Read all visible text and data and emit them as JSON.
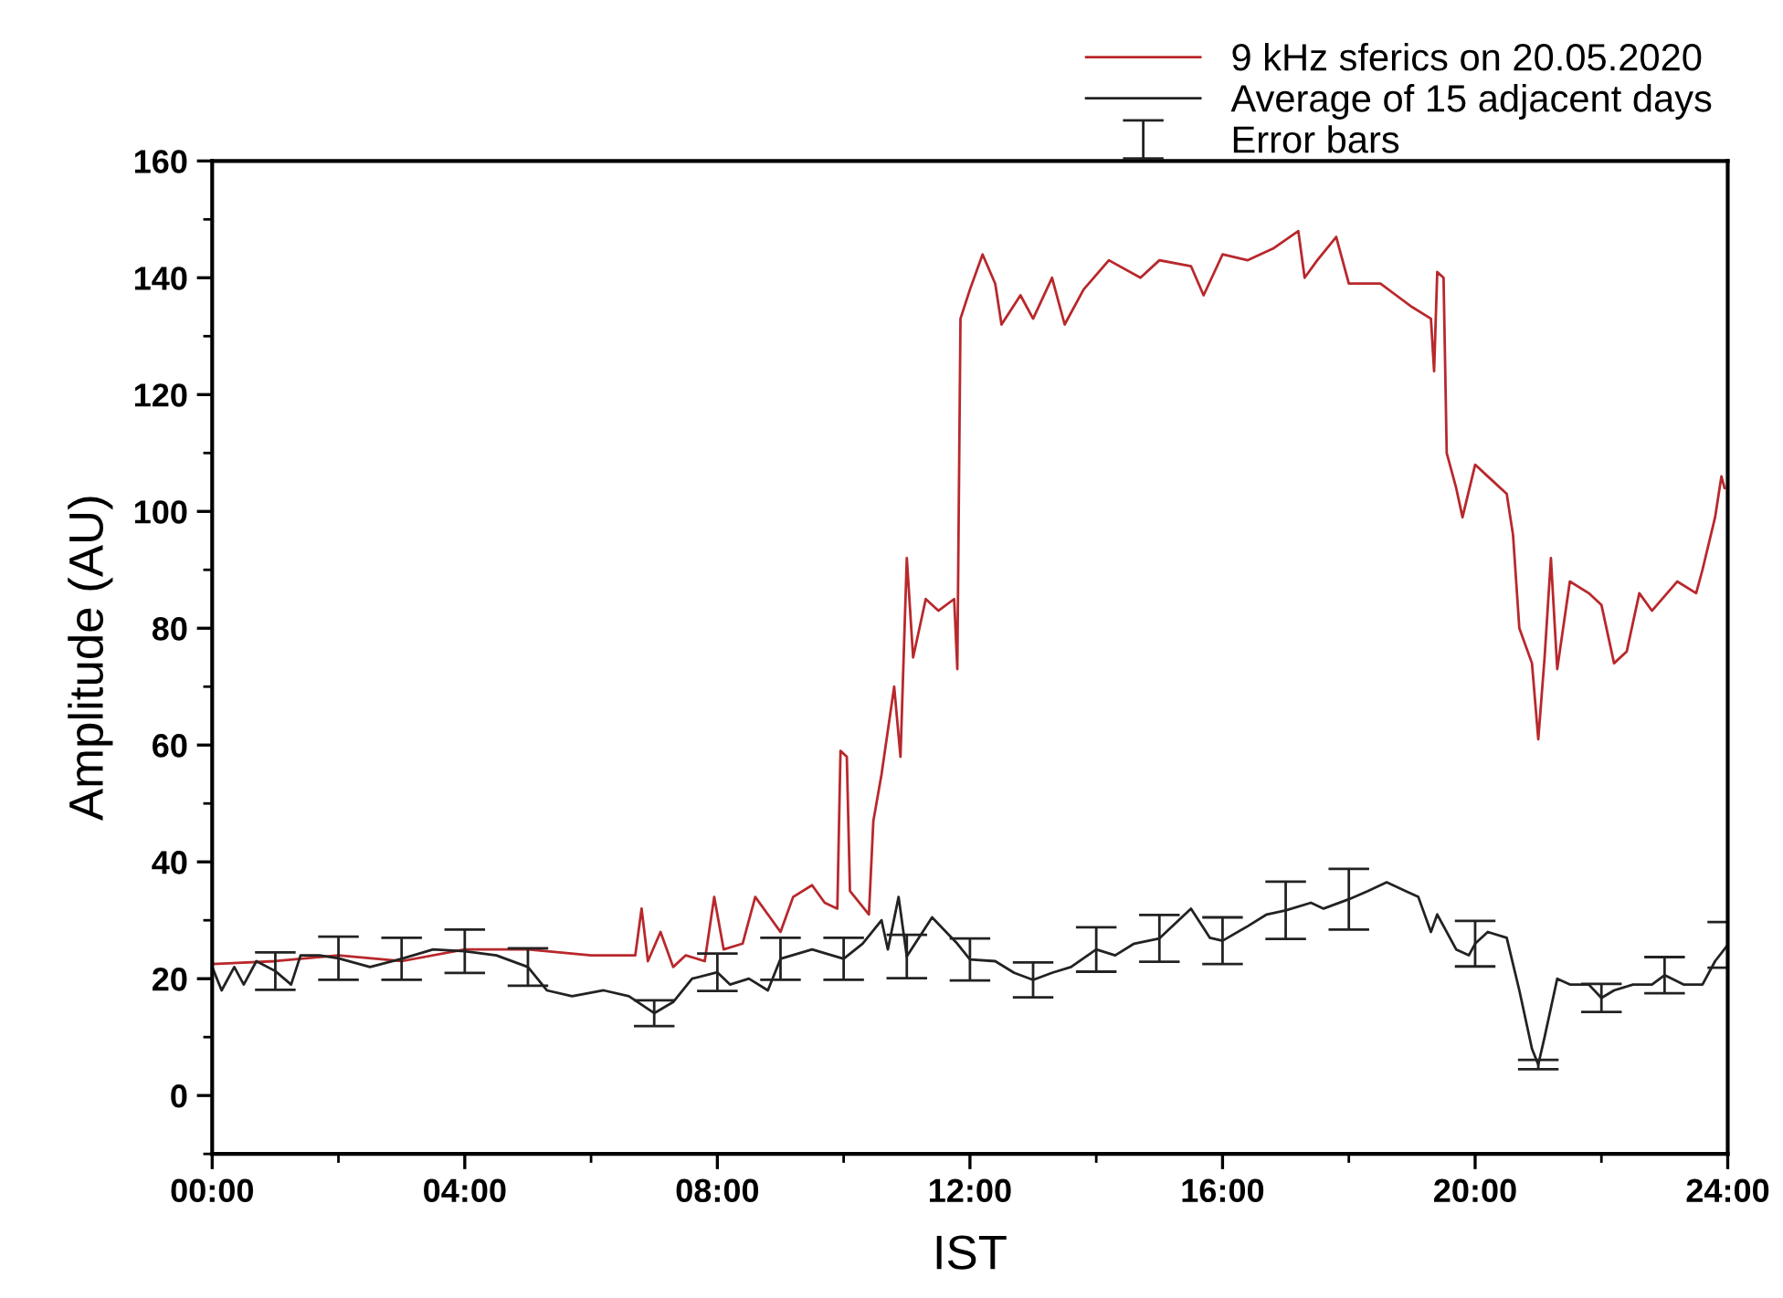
{
  "chart_data": {
    "type": "line",
    "xlabel": "IST",
    "ylabel": "Amplitude (AU)",
    "legend": "top right",
    "grid": false,
    "line_style": "solid",
    "marker": "none",
    "xlim": [
      0,
      24
    ],
    "xticks": [
      {
        "value": 0,
        "label": "00:00"
      },
      {
        "value": 2,
        "label": null
      },
      {
        "value": 4,
        "label": "04:00"
      },
      {
        "value": 6,
        "label": null
      },
      {
        "value": 8,
        "label": "08:00"
      },
      {
        "value": 10,
        "label": null
      },
      {
        "value": 12,
        "label": "12:00"
      },
      {
        "value": 14,
        "label": null
      },
      {
        "value": 16,
        "label": "16:00"
      },
      {
        "value": 18,
        "label": null
      },
      {
        "value": 20,
        "label": "20:00"
      },
      {
        "value": 22,
        "label": null
      },
      {
        "value": 24,
        "label": "24:00"
      }
    ],
    "ylim": [
      -10,
      160
    ],
    "yticks": [
      {
        "value": -10,
        "label": null
      },
      0,
      {
        "value": 10,
        "label": null
      },
      20,
      {
        "value": 30,
        "label": null
      },
      40,
      {
        "value": 50,
        "label": null
      },
      60,
      {
        "value": 70,
        "label": null
      },
      80,
      {
        "value": 90,
        "label": null
      },
      100,
      {
        "value": 110,
        "label": null
      },
      120,
      {
        "value": 130,
        "label": null
      },
      140,
      {
        "value": 150,
        "label": null
      },
      160
    ],
    "annotations": [
      "Error bars"
    ],
    "series": [
      {
        "name": "9 kHz sferics on 20.05.2020",
        "color": "#b8282c",
        "x": [
          0,
          1,
          2,
          3,
          4,
          5,
          6,
          6.7,
          6.8,
          6.9,
          7.1,
          7.3,
          7.5,
          7.8,
          7.95,
          8.1,
          8.4,
          8.6,
          8.8,
          9.0,
          9.2,
          9.5,
          9.7,
          9.9,
          9.95,
          10.05,
          10.1,
          10.4,
          10.47,
          10.6,
          10.8,
          10.9,
          11.0,
          11.1,
          11.3,
          11.5,
          11.75,
          11.8,
          11.85,
          12.0,
          12.2,
          12.4,
          12.5,
          12.8,
          13.0,
          13.3,
          13.5,
          13.8,
          14.2,
          14.7,
          15.0,
          15.5,
          15.7,
          16.0,
          16.4,
          16.8,
          17.2,
          17.3,
          17.5,
          17.8,
          18.0,
          18.5,
          19.0,
          19.3,
          19.35,
          19.4,
          19.5,
          19.55,
          19.7,
          19.8,
          20.0,
          20.2,
          20.5,
          20.6,
          20.7,
          20.9,
          21.0,
          21.1,
          21.2,
          21.3,
          21.5,
          21.8,
          22.0,
          22.2,
          22.4,
          22.6,
          22.8,
          23.2,
          23.5,
          23.6,
          23.8,
          23.9,
          23.95
        ],
        "values": [
          22.5,
          23,
          24,
          23,
          25,
          25,
          24,
          24,
          32,
          23,
          28,
          22,
          24,
          23,
          34,
          25,
          26,
          34,
          31,
          28,
          34,
          36,
          33,
          32,
          59,
          58,
          35,
          31,
          47,
          55,
          70,
          58,
          92,
          75,
          85,
          83,
          85,
          73,
          133,
          138,
          144,
          139,
          132,
          137,
          133,
          140,
          132,
          138,
          143,
          140,
          143,
          142,
          137,
          144,
          143,
          145,
          148,
          140,
          143,
          147,
          139,
          139,
          135,
          133,
          124,
          141,
          140,
          110,
          104,
          99,
          108,
          106,
          103,
          96,
          80,
          74,
          61,
          75,
          92,
          73,
          88,
          86,
          84,
          74,
          76,
          86,
          83,
          88,
          86,
          90,
          99,
          106,
          104
        ]
      },
      {
        "name": "Average of 15 adjacent days",
        "color": "#222222",
        "x": [
          0,
          0.15,
          0.35,
          0.5,
          0.7,
          1,
          1.25,
          1.4,
          1.7,
          2,
          2.5,
          3,
          3.5,
          4,
          4.5,
          5,
          5.3,
          5.7,
          6.2,
          6.6,
          7,
          7.3,
          7.6,
          8,
          8.2,
          8.5,
          8.8,
          9,
          9.5,
          10,
          10.3,
          10.6,
          10.7,
          10.87,
          11,
          11.4,
          11.8,
          12,
          12.4,
          12.7,
          13,
          13.3,
          13.6,
          14,
          14.3,
          14.6,
          15,
          15.5,
          15.8,
          16,
          16.4,
          16.7,
          17,
          17.4,
          17.6,
          18,
          18.3,
          18.6,
          18.9,
          19.1,
          19.3,
          19.4,
          19.7,
          19.9,
          20,
          20.2,
          20.5,
          20.7,
          20.9,
          21,
          21.1,
          21.3,
          21.5,
          21.8,
          22,
          22.2,
          22.5,
          22.8,
          23,
          23.3,
          23.6,
          23.8,
          24
        ],
        "values": [
          22,
          18,
          22,
          19,
          23,
          21.3,
          19,
          24,
          24,
          23.5,
          22,
          23.4,
          25,
          24.7,
          24,
          22,
          18,
          17,
          18,
          17,
          14.1,
          16,
          20,
          21.1,
          19,
          20,
          18,
          23.4,
          25,
          23.4,
          26,
          30,
          25,
          34,
          23.8,
          30.5,
          26,
          23.3,
          23,
          21,
          19.8,
          21,
          22,
          25,
          24,
          26,
          26.9,
          32,
          27,
          26.5,
          29,
          31,
          31.7,
          33,
          32,
          33.6,
          35,
          36.5,
          35,
          34,
          28,
          31,
          25,
          24,
          26,
          28,
          27,
          18,
          8,
          5.3,
          10,
          20,
          19,
          19,
          16.7,
          18,
          19,
          19,
          20.6,
          19,
          19,
          23,
          25.8
        ],
        "errors": [
          null,
          null,
          null,
          null,
          null,
          3.2,
          null,
          null,
          null,
          3.7,
          null,
          3.6,
          null,
          3.7,
          null,
          3.2,
          null,
          null,
          null,
          null,
          2.2,
          null,
          null,
          3.2,
          null,
          null,
          null,
          3.6,
          null,
          3.6,
          null,
          null,
          null,
          null,
          3.7,
          null,
          null,
          3.6,
          null,
          null,
          3,
          null,
          null,
          3.8,
          null,
          null,
          4,
          null,
          null,
          4,
          null,
          null,
          4.9,
          null,
          null,
          5.2,
          null,
          null,
          null,
          null,
          null,
          null,
          null,
          null,
          3.9,
          null,
          null,
          null,
          null,
          0.8,
          null,
          null,
          null,
          null,
          2.4,
          null,
          null,
          null,
          3.1,
          null,
          null,
          null,
          3.9
        ]
      }
    ]
  }
}
